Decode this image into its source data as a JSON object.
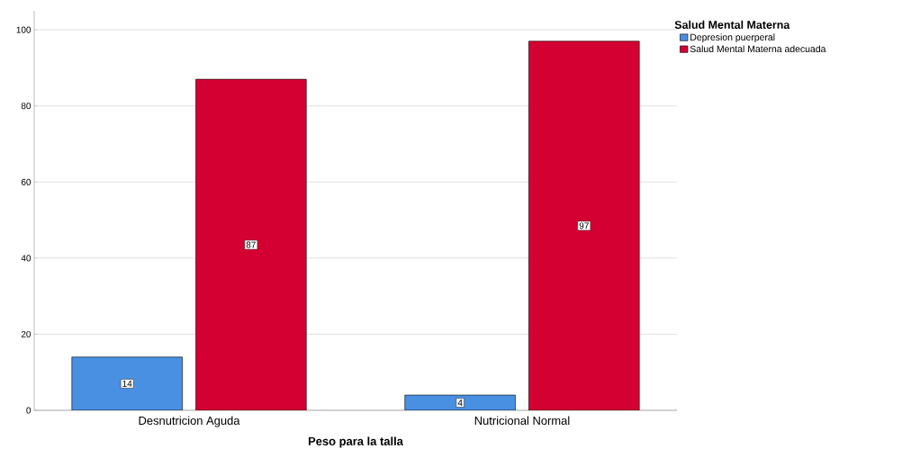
{
  "chart_data": {
    "type": "bar",
    "xlabel": "Peso para la talla",
    "legend_title": "Salud Mental Materna",
    "categories": [
      "Desnutricion Aguda",
      "Nutricional Normal"
    ],
    "series": [
      {
        "name": "Depresion puerperal",
        "color": "#4a90e2",
        "values": [
          14,
          4
        ]
      },
      {
        "name": "Salud Mental Materna adecuada",
        "color": "#d40032",
        "values": [
          87,
          97
        ]
      }
    ],
    "ylim": [
      0,
      105
    ],
    "yticks": [
      0,
      20,
      40,
      60,
      80,
      100
    ],
    "grid": "y",
    "legend": "top right",
    "data_labels": true
  }
}
